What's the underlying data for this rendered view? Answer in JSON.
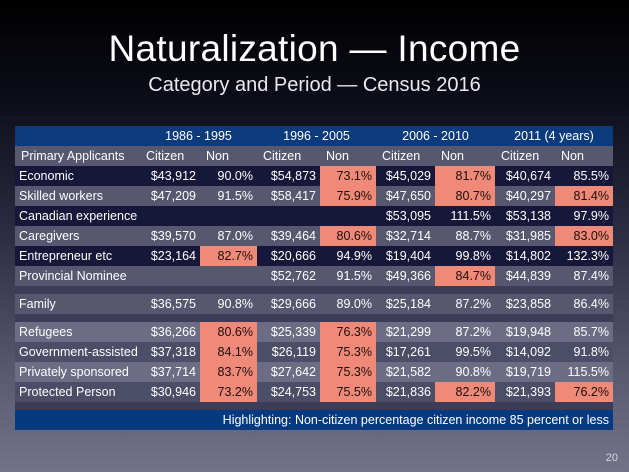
{
  "title": "Naturalization — Income",
  "subtitle": "Category and Period — Census 2016",
  "periods": [
    "1986 - 1995",
    "1996 - 2005",
    "2006 - 2010",
    "2011 (4 years)"
  ],
  "subheader": [
    "Primary Applicants",
    "Citizen",
    "Non",
    "Citizen",
    "Non",
    "Citizen",
    "Non",
    "Citizen",
    "Non"
  ],
  "colors": {
    "header": "#0b3b7d",
    "highlight": "#ef8a78"
  },
  "groups": [
    {
      "rows": [
        {
          "label": "Economic",
          "values": [
            "$43,912",
            "90.0%",
            "$54,873",
            "73.1%",
            "$45,029",
            "81.7%",
            "$40,674",
            "85.5%"
          ],
          "highlight": [
            3,
            5
          ],
          "style": "dark"
        },
        {
          "label": "Skilled workers",
          "values": [
            "$47,209",
            "91.5%",
            "$58,417",
            "75.9%",
            "$47,650",
            "80.7%",
            "$40,297",
            "81.4%"
          ],
          "highlight": [
            3,
            5,
            7
          ],
          "style": "grey"
        },
        {
          "label": "Canadian experience",
          "values": [
            "",
            "",
            "",
            "",
            "$53,095",
            "111.5%",
            "$53,138",
            "97.9%"
          ],
          "highlight": [],
          "style": "dark"
        },
        {
          "label": "Caregivers",
          "values": [
            "$39,570",
            "87.0%",
            "$39,464",
            "80.6%",
            "$32,714",
            "88.7%",
            "$31,985",
            "83.0%"
          ],
          "highlight": [
            3,
            7
          ],
          "style": "grey"
        },
        {
          "label": "Entrepreneur etc",
          "values": [
            "$23,164",
            "82.7%",
            "$20,666",
            "94.9%",
            "$19,404",
            "99.8%",
            "$14,802",
            "132.3%"
          ],
          "highlight": [
            1
          ],
          "style": "dark"
        },
        {
          "label": "Provincial Nominee",
          "values": [
            "",
            "",
            "$52,762",
            "91.5%",
            "$49,366",
            "84.7%",
            "$44,839",
            "87.4%"
          ],
          "highlight": [
            5
          ],
          "style": "grey"
        }
      ]
    },
    {
      "rows": [
        {
          "label": "Family",
          "values": [
            "$36,575",
            "90.8%",
            "$29,666",
            "89.0%",
            "$25,184",
            "87.2%",
            "$23,858",
            "86.4%"
          ],
          "highlight": [],
          "style": "grey"
        }
      ]
    },
    {
      "rows": [
        {
          "label": "Refugees",
          "values": [
            "$36,266",
            "80.6%",
            "$25,339",
            "76.3%",
            "$21,299",
            "87.2%",
            "$19,948",
            "85.7%"
          ],
          "highlight": [
            1,
            3
          ],
          "style": "light"
        },
        {
          "label": "Government-assisted",
          "values": [
            "$37,318",
            "84.1%",
            "$26,119",
            "75.3%",
            "$17,261",
            "99.5%",
            "$14,092",
            "91.8%"
          ],
          "highlight": [
            1,
            3
          ],
          "style": "mid"
        },
        {
          "label": "Privately sponsored",
          "values": [
            "$37,714",
            "83.7%",
            "$27,642",
            "75.3%",
            "$21,582",
            "90.8%",
            "$19,719",
            "115.5%"
          ],
          "highlight": [
            1,
            3
          ],
          "style": "light"
        },
        {
          "label": "Protected Person",
          "values": [
            "$30,946",
            "73.2%",
            "$24,753",
            "75.5%",
            "$21,836",
            "82.2%",
            "$21,393",
            "76.2%"
          ],
          "highlight": [
            1,
            3,
            5,
            7
          ],
          "style": "mid"
        }
      ]
    }
  ],
  "footer": "Highlighting: Non-citizen percentage citizen income 85 percent or less",
  "page_number": "20"
}
